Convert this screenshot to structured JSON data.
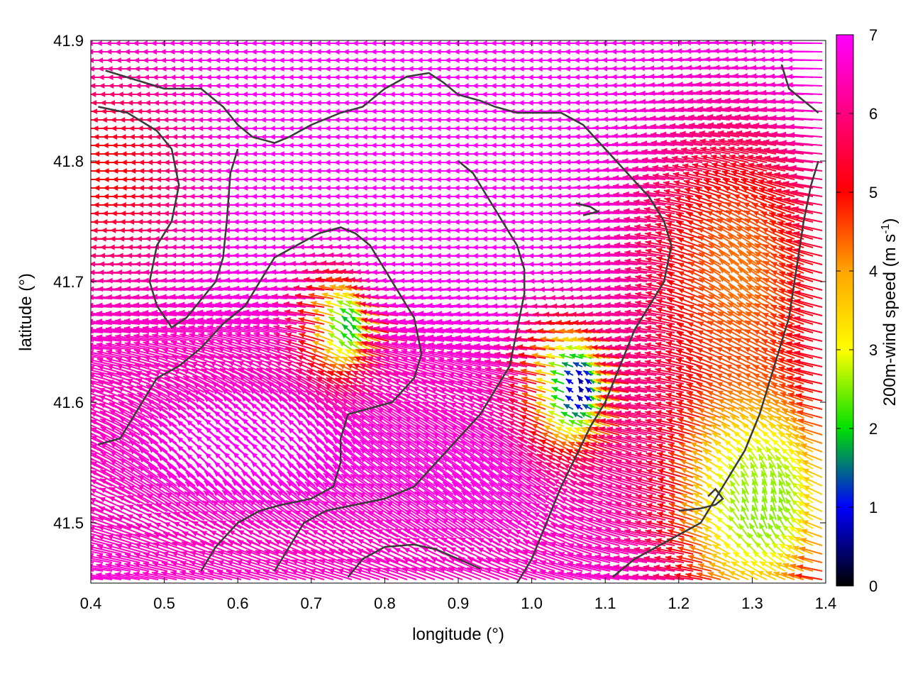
{
  "chart_data": {
    "type": "vector-field",
    "xlabel": "longitude (°)",
    "ylabel": "latitude (°)",
    "xlim": [
      0.4,
      1.4
    ],
    "ylim": [
      41.45,
      41.9
    ],
    "x_ticks": [
      0.4,
      0.5,
      0.6,
      0.7,
      0.8,
      0.9,
      1.0,
      1.1,
      1.2,
      1.3,
      1.4
    ],
    "x_tick_labels": [
      "0.4",
      "0.5",
      "0.6",
      "0.7",
      "0.8",
      "0.9",
      "1.0",
      "1.1",
      "1.2",
      "1.3",
      "1.4"
    ],
    "y_ticks": [
      41.5,
      41.6,
      41.7,
      41.8,
      41.9
    ],
    "y_tick_labels": [
      "41.5",
      "41.6",
      "41.7",
      "41.8",
      "41.9"
    ],
    "colorbar": {
      "label_main": "200m-wind speed (m s",
      "label_sup": "-1",
      "label_end": ")",
      "range": [
        0,
        7
      ],
      "ticks": [
        0,
        1,
        2,
        3,
        4,
        5,
        6,
        7
      ],
      "tick_labels": [
        "0",
        "1",
        "2",
        "3",
        "4",
        "5",
        "6",
        "7"
      ],
      "colormap": "black-blue-green-yellow-orange-red-magenta",
      "colors": [
        "#000000",
        "#0000ff",
        "#00e000",
        "#ffff00",
        "#ffa500",
        "#ff0000",
        "#ff00ff"
      ]
    },
    "wind_field": {
      "description_regions": [
        {
          "region": "north band",
          "direction": "westward",
          "speed": "5-7"
        },
        {
          "region": "west coast around 0.4-0.55 lon",
          "direction": "westward",
          "speed": "3-6"
        },
        {
          "region": "southwest",
          "direction": "north-westward",
          "speed": "7"
        },
        {
          "region": "center low around lon 1.07 lat 41.61",
          "direction": "convergent",
          "speed": "0-3"
        },
        {
          "region": "southeast",
          "direction": "northward",
          "speed": "2-4"
        },
        {
          "region": "east",
          "direction": "north-westward",
          "speed": "4-7"
        }
      ]
    },
    "coastlines": [
      [
        [
          0.42,
          41.875
        ],
        [
          0.5,
          41.86
        ],
        [
          0.55,
          41.86
        ],
        [
          0.58,
          41.845
        ],
        [
          0.6,
          41.83
        ],
        [
          0.62,
          41.82
        ],
        [
          0.65,
          41.815
        ],
        [
          0.67,
          41.82
        ],
        [
          0.7,
          41.83
        ],
        [
          0.74,
          41.84
        ],
        [
          0.77,
          41.845
        ],
        [
          0.8,
          41.86
        ],
        [
          0.83,
          41.87
        ],
        [
          0.86,
          41.873
        ],
        [
          0.88,
          41.865
        ],
        [
          0.9,
          41.855
        ],
        [
          0.93,
          41.85
        ],
        [
          0.95,
          41.845
        ],
        [
          0.98,
          41.84
        ],
        [
          1.01,
          41.84
        ],
        [
          1.04,
          41.84
        ],
        [
          1.07,
          41.83
        ],
        [
          1.1,
          41.81
        ],
        [
          1.13,
          41.79
        ],
        [
          1.16,
          41.77
        ],
        [
          1.18,
          41.75
        ],
        [
          1.19,
          41.73
        ],
        [
          1.18,
          41.7
        ],
        [
          1.16,
          41.68
        ],
        [
          1.14,
          41.66
        ],
        [
          1.12,
          41.63
        ],
        [
          1.1,
          41.6
        ],
        [
          1.08,
          41.58
        ],
        [
          1.06,
          41.555
        ],
        [
          1.04,
          41.53
        ],
        [
          1.02,
          41.5
        ],
        [
          1.0,
          41.47
        ],
        [
          0.98,
          41.45
        ]
      ],
      [
        [
          0.41,
          41.845
        ],
        [
          0.45,
          41.84
        ],
        [
          0.49,
          41.825
        ],
        [
          0.51,
          41.81
        ],
        [
          0.52,
          41.78
        ],
        [
          0.51,
          41.75
        ],
        [
          0.49,
          41.73
        ],
        [
          0.48,
          41.7
        ],
        [
          0.49,
          41.68
        ],
        [
          0.51,
          41.662
        ],
        [
          0.53,
          41.67
        ],
        [
          0.55,
          41.685
        ],
        [
          0.57,
          41.7
        ],
        [
          0.58,
          41.72
        ],
        [
          0.585,
          41.75
        ],
        [
          0.59,
          41.79
        ],
        [
          0.6,
          41.81
        ]
      ],
      [
        [
          0.41,
          41.565
        ],
        [
          0.44,
          41.57
        ],
        [
          0.47,
          41.6
        ],
        [
          0.49,
          41.62
        ],
        [
          0.52,
          41.63
        ],
        [
          0.55,
          41.645
        ],
        [
          0.58,
          41.665
        ],
        [
          0.61,
          41.68
        ],
        [
          0.63,
          41.7
        ],
        [
          0.65,
          41.72
        ],
        [
          0.68,
          41.73
        ],
        [
          0.71,
          41.74
        ],
        [
          0.74,
          41.745
        ],
        [
          0.76,
          41.74
        ],
        [
          0.78,
          41.73
        ],
        [
          0.8,
          41.71
        ],
        [
          0.82,
          41.69
        ],
        [
          0.84,
          41.67
        ],
        [
          0.85,
          41.64
        ],
        [
          0.84,
          41.62
        ],
        [
          0.81,
          41.6
        ],
        [
          0.78,
          41.595
        ],
        [
          0.75,
          41.59
        ],
        [
          0.74,
          41.57
        ],
        [
          0.74,
          41.55
        ],
        [
          0.73,
          41.53
        ],
        [
          0.7,
          41.52
        ],
        [
          0.66,
          41.515
        ],
        [
          0.63,
          41.51
        ],
        [
          0.6,
          41.5
        ],
        [
          0.57,
          41.48
        ],
        [
          0.55,
          41.46
        ]
      ],
      [
        [
          0.65,
          41.46
        ],
        [
          0.67,
          41.48
        ],
        [
          0.69,
          41.5
        ],
        [
          0.72,
          41.51
        ],
        [
          0.76,
          41.515
        ],
        [
          0.8,
          41.52
        ],
        [
          0.84,
          41.53
        ],
        [
          0.87,
          41.55
        ],
        [
          0.9,
          41.57
        ],
        [
          0.93,
          41.59
        ],
        [
          0.95,
          41.61
        ],
        [
          0.97,
          41.63
        ],
        [
          0.98,
          41.66
        ],
        [
          0.99,
          41.69
        ],
        [
          0.99,
          41.71
        ],
        [
          0.98,
          41.73
        ],
        [
          0.96,
          41.75
        ],
        [
          0.94,
          41.77
        ],
        [
          0.92,
          41.79
        ],
        [
          0.9,
          41.8
        ]
      ],
      [
        [
          0.75,
          41.455
        ],
        [
          0.77,
          41.47
        ],
        [
          0.8,
          41.48
        ],
        [
          0.84,
          41.482
        ],
        [
          0.87,
          41.478
        ],
        [
          0.9,
          41.47
        ],
        [
          0.93,
          41.462
        ]
      ],
      [
        [
          1.11,
          41.455
        ],
        [
          1.14,
          41.47
        ],
        [
          1.17,
          41.48
        ],
        [
          1.2,
          41.49
        ],
        [
          1.23,
          41.5
        ],
        [
          1.25,
          41.52
        ],
        [
          1.27,
          41.54
        ],
        [
          1.29,
          41.56
        ],
        [
          1.31,
          41.59
        ],
        [
          1.33,
          41.63
        ],
        [
          1.35,
          41.67
        ],
        [
          1.36,
          41.71
        ],
        [
          1.37,
          41.75
        ],
        [
          1.38,
          41.78
        ],
        [
          1.39,
          41.8
        ]
      ],
      [
        [
          1.2,
          41.51
        ],
        [
          1.23,
          41.512
        ],
        [
          1.25,
          41.515
        ],
        [
          1.26,
          41.52
        ],
        [
          1.25,
          41.528
        ],
        [
          1.24,
          41.522
        ]
      ],
      [
        [
          1.34,
          41.88
        ],
        [
          1.35,
          41.86
        ],
        [
          1.37,
          41.85
        ],
        [
          1.39,
          41.84
        ]
      ],
      [
        [
          1.06,
          41.765
        ],
        [
          1.08,
          41.762
        ],
        [
          1.09,
          41.758
        ],
        [
          1.07,
          41.755
        ]
      ]
    ]
  }
}
